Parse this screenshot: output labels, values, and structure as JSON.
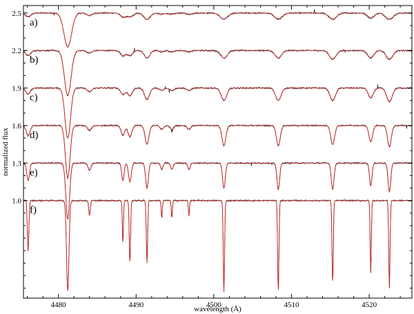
{
  "chart_data": {
    "type": "line",
    "xlabel": "wavelength (Å)",
    "ylabel": "normalized flux",
    "xlim": [
      4475.5,
      4525.5
    ],
    "ylim": [
      0.22,
      2.56
    ],
    "x_ticks": [
      4480,
      4490,
      4500,
      4510,
      4520
    ],
    "x_tick_labels": [
      "4480",
      "4490",
      "4500",
      "4510",
      "4520"
    ],
    "y_ticks": [
      1.0,
      1.3,
      1.6,
      1.9,
      2.2,
      2.5
    ],
    "y_tick_labels": [
      "1.0",
      "1.3",
      "1.6",
      "1.9",
      "2.2",
      "2.5"
    ],
    "grid": false,
    "line_centers": [
      4476.1,
      4481.2,
      4484.0,
      4488.3,
      4489.2,
      4491.4,
      4493.3,
      4494.6,
      4496.8,
      4501.3,
      4508.3,
      4515.3,
      4520.2,
      4522.6
    ],
    "series": [
      {
        "label": "a)",
        "continuum": 2.5,
        "color_observed": "#2b2b2b",
        "color_model": "#cc2222",
        "depths": [
          0.03,
          0.27,
          0.02,
          0.03,
          0.03,
          0.05,
          0.01,
          0.01,
          0.01,
          0.05,
          0.05,
          0.05,
          0.04,
          0.05
        ],
        "widths": [
          0.5,
          0.7,
          0.5,
          0.5,
          0.6,
          0.6,
          0.5,
          0.5,
          0.5,
          0.7,
          0.7,
          0.7,
          0.6,
          0.7
        ]
      },
      {
        "label": "b)",
        "continuum": 2.2,
        "color_observed": "#2b2b2b",
        "color_model": "#cc2222",
        "depths": [
          0.04,
          0.36,
          0.02,
          0.04,
          0.04,
          0.06,
          0.01,
          0.01,
          0.01,
          0.06,
          0.06,
          0.07,
          0.06,
          0.07
        ],
        "widths": [
          0.45,
          0.6,
          0.45,
          0.45,
          0.5,
          0.5,
          0.45,
          0.45,
          0.45,
          0.6,
          0.6,
          0.6,
          0.55,
          0.6
        ]
      },
      {
        "label": "c)",
        "continuum": 1.9,
        "color_observed": "#2b2b2b",
        "color_model": "#cc2222",
        "depths": [
          0.05,
          0.4,
          0.03,
          0.05,
          0.06,
          0.09,
          0.02,
          0.02,
          0.02,
          0.1,
          0.1,
          0.1,
          0.08,
          0.11
        ],
        "widths": [
          0.4,
          0.5,
          0.4,
          0.4,
          0.45,
          0.45,
          0.4,
          0.4,
          0.4,
          0.5,
          0.5,
          0.5,
          0.45,
          0.5
        ]
      },
      {
        "label": "d)",
        "continuum": 1.6,
        "color_observed": "#2b2b2b",
        "color_model": "#cc2222",
        "depths": [
          0.08,
          0.42,
          0.04,
          0.08,
          0.09,
          0.15,
          0.03,
          0.03,
          0.03,
          0.16,
          0.16,
          0.15,
          0.13,
          0.17
        ],
        "widths": [
          0.35,
          0.42,
          0.35,
          0.32,
          0.35,
          0.35,
          0.32,
          0.32,
          0.32,
          0.35,
          0.35,
          0.35,
          0.33,
          0.35
        ]
      },
      {
        "label": "e)",
        "continuum": 1.3,
        "color_observed": "#2b2b2b",
        "color_model": "#cc2222",
        "depths": [
          0.14,
          0.45,
          0.06,
          0.14,
          0.15,
          0.2,
          0.05,
          0.05,
          0.05,
          0.2,
          0.21,
          0.21,
          0.18,
          0.23
        ],
        "widths": [
          0.25,
          0.34,
          0.25,
          0.22,
          0.25,
          0.25,
          0.22,
          0.22,
          0.22,
          0.25,
          0.25,
          0.25,
          0.23,
          0.25
        ]
      },
      {
        "label": "f)",
        "continuum": 1.0,
        "color_observed": "#2b2b2b",
        "color_model": "#cc2222",
        "depths": [
          0.4,
          0.72,
          0.12,
          0.34,
          0.5,
          0.5,
          0.14,
          0.14,
          0.12,
          0.73,
          0.73,
          0.66,
          0.58,
          0.7
        ],
        "widths": [
          0.14,
          0.22,
          0.14,
          0.1,
          0.12,
          0.12,
          0.1,
          0.1,
          0.1,
          0.12,
          0.12,
          0.12,
          0.11,
          0.12
        ]
      }
    ]
  }
}
